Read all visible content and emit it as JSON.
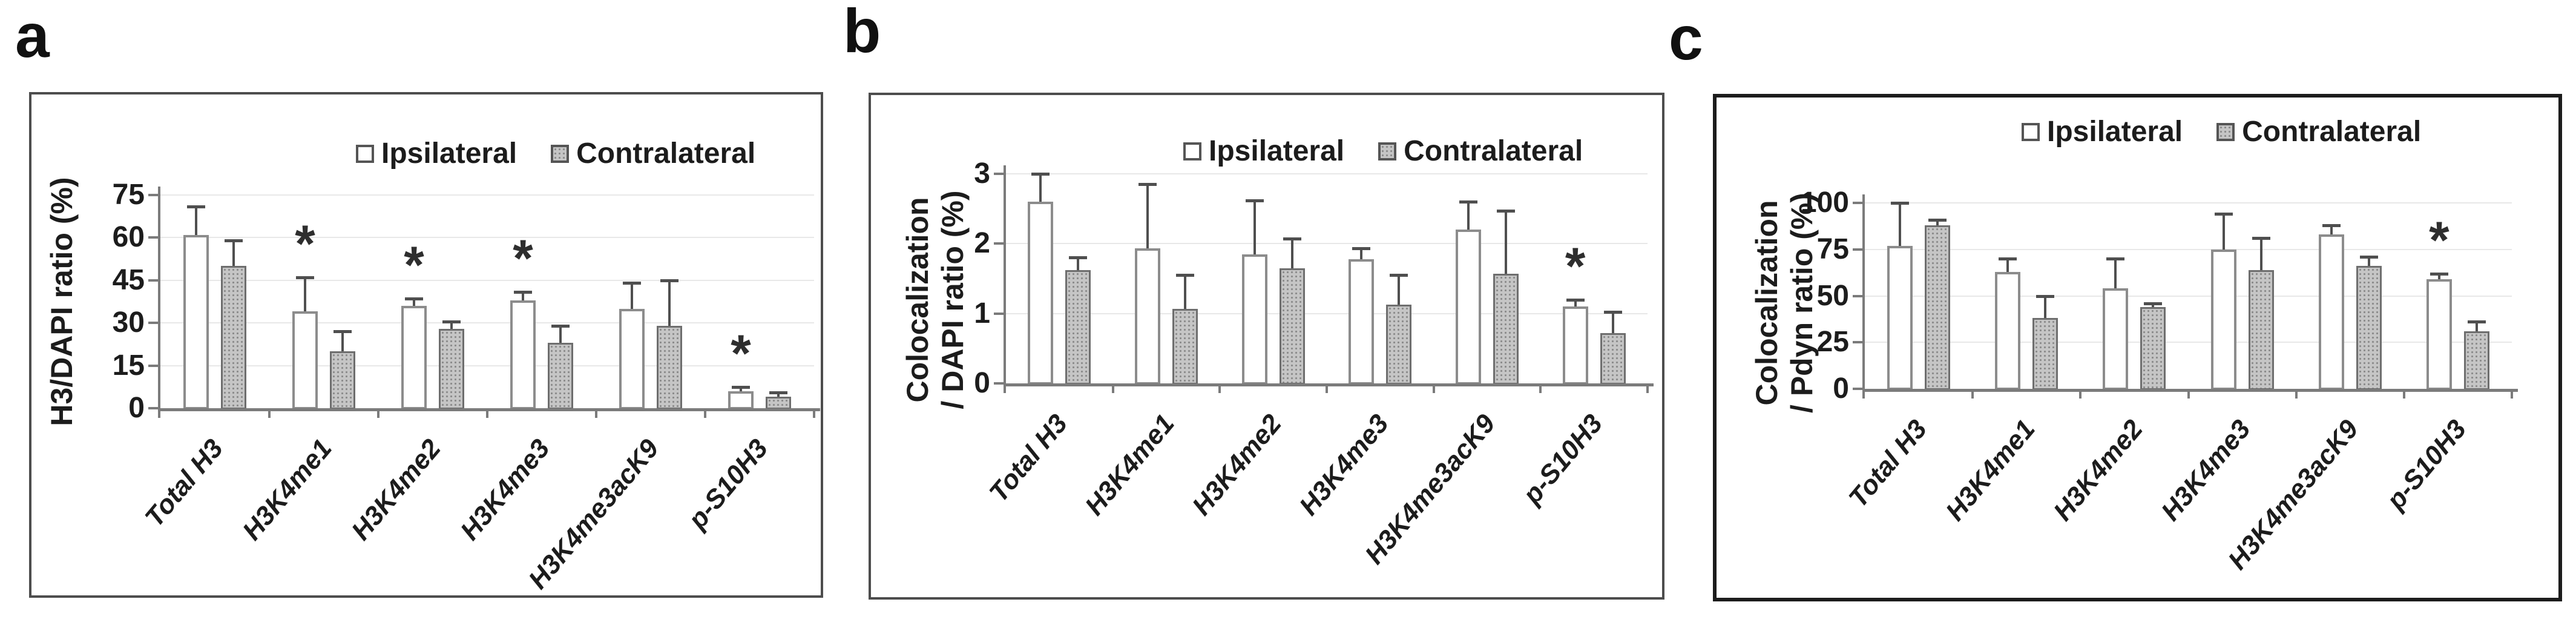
{
  "figure": {
    "panel_letters": [
      "a",
      "b",
      "c"
    ],
    "legend": {
      "series1": "Ipsilateral",
      "series2": "Contralateral"
    },
    "significance_symbol": "*",
    "colors": {
      "ipsilateral_fill": "#ffffff",
      "ipsilateral_border": "#8c8c8c",
      "contralateral_fill": "#c5c5c5",
      "contralateral_dot": "#8a8a8a",
      "axis_line": "#7b7b7b",
      "error_bar": "#4f4f4f",
      "gridline": "#e8e8e8",
      "text": "#1c1c1c",
      "panel_border_ab": "#4d4d4d",
      "panel_border_c": "#1c1c1c"
    }
  },
  "chart_data": [
    {
      "type": "bar",
      "panel": "a",
      "ylabel": "H3/DAPI ratio (%)",
      "ylabel_lines": [
        "H3/DAPI ratio (%)"
      ],
      "ylim": [
        0,
        75
      ],
      "yticks": [
        0,
        15,
        30,
        45,
        60,
        75
      ],
      "grid": true,
      "legend_position": "top-right",
      "categories": [
        "Total H3",
        "H3K4me1",
        "H3K4me2",
        "H3K4me3",
        "H3K4me3acK9",
        "p-S10H3"
      ],
      "series": [
        {
          "name": "Ipsilateral",
          "values": [
            61,
            34,
            36,
            38,
            35,
            6
          ],
          "errors_up": [
            10,
            12,
            2.5,
            3,
            9,
            1.5
          ]
        },
        {
          "name": "Contralateral",
          "values": [
            50,
            20,
            28,
            23,
            29,
            4
          ],
          "errors_up": [
            9,
            7,
            2.5,
            6,
            16,
            1.5
          ]
        }
      ],
      "stars": [
        "H3K4me1",
        "H3K4me2",
        "H3K4me3",
        "p-S10H3"
      ]
    },
    {
      "type": "bar",
      "panel": "b",
      "ylabel": "Colocalization / DAPI ratio (%)",
      "ylabel_lines": [
        "Colocalization",
        "/ DAPI ratio (%)"
      ],
      "ylim": [
        0,
        3
      ],
      "yticks": [
        0,
        1,
        2,
        3
      ],
      "grid": true,
      "legend_position": "top-right",
      "categories": [
        "Total H3",
        "H3K4me1",
        "H3K4me2",
        "H3K4me3",
        "H3K4me3acK9",
        "p-S10H3"
      ],
      "series": [
        {
          "name": "Ipsilateral",
          "values": [
            2.6,
            1.93,
            1.85,
            1.78,
            2.2,
            1.1
          ],
          "errors_up": [
            0.4,
            0.92,
            0.77,
            0.15,
            0.4,
            0.1
          ]
        },
        {
          "name": "Contralateral",
          "values": [
            1.62,
            1.07,
            1.65,
            1.13,
            1.57,
            0.72
          ],
          "errors_up": [
            0.18,
            0.48,
            0.42,
            0.42,
            0.9,
            0.3
          ]
        }
      ],
      "stars": [
        "p-S10H3"
      ]
    },
    {
      "type": "bar",
      "panel": "c",
      "ylabel": "Colocalization / Pdyn ratio (%)",
      "ylabel_lines": [
        "Colocalization",
        "/ Pdyn ratio (%)"
      ],
      "ylim": [
        0,
        100
      ],
      "yticks": [
        0,
        25,
        50,
        75,
        100
      ],
      "grid": true,
      "legend_position": "top-right",
      "categories": [
        "Total H3",
        "H3K4me1",
        "H3K4me2",
        "H3K4me3",
        "H3K4me3acK9",
        "p-S10H3"
      ],
      "series": [
        {
          "name": "Ipsilateral",
          "values": [
            77,
            63,
            54,
            75,
            83,
            59
          ],
          "errors_up": [
            23,
            7,
            16,
            19,
            5,
            3
          ]
        },
        {
          "name": "Contralateral",
          "values": [
            88,
            38,
            44,
            64,
            66,
            31
          ],
          "errors_up": [
            3,
            12,
            2,
            17,
            5,
            5
          ]
        }
      ],
      "stars": [
        "p-S10H3"
      ]
    }
  ]
}
